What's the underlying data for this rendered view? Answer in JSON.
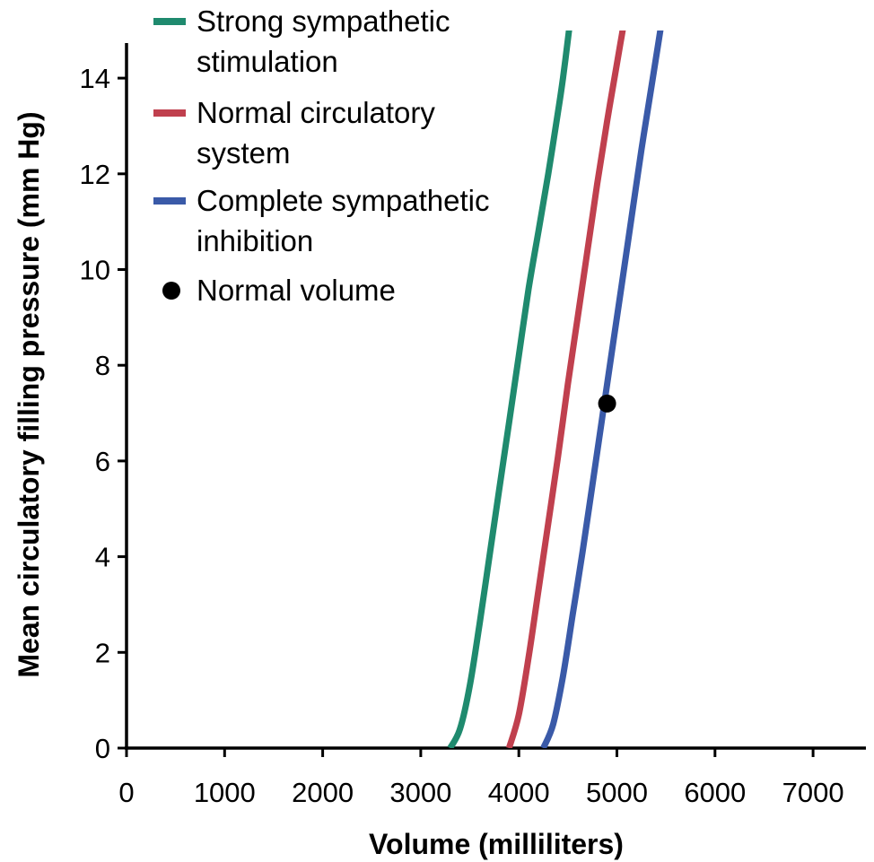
{
  "chart_data": {
    "type": "line",
    "title": "",
    "xlabel": "Volume (milliliters)",
    "ylabel": "Mean circulatory filling pressure (mm Hg)",
    "xlim": [
      0,
      7500
    ],
    "ylim": [
      0,
      15
    ],
    "x_ticks": [
      0,
      1000,
      2000,
      3000,
      4000,
      5000,
      6000,
      7000
    ],
    "y_ticks": [
      0,
      2,
      4,
      6,
      8,
      10,
      12,
      14
    ],
    "grid": false,
    "legend_position": "top-left",
    "series": [
      {
        "name_lines": [
          "Strong sympathetic",
          "stimulation"
        ],
        "color": "#1f8a6e",
        "points": [
          [
            3300,
            0
          ],
          [
            3400,
            0.4
          ],
          [
            3500,
            1.3
          ],
          [
            3600,
            2.6
          ],
          [
            3700,
            4.0
          ],
          [
            3800,
            5.4
          ],
          [
            3900,
            6.8
          ],
          [
            4000,
            8.2
          ],
          [
            4100,
            9.6
          ],
          [
            4200,
            10.8
          ],
          [
            4300,
            12.0
          ],
          [
            4400,
            13.3
          ],
          [
            4450,
            14.0
          ],
          [
            4500,
            14.8
          ],
          [
            4540,
            15.5
          ]
        ]
      },
      {
        "name_lines": [
          "Normal circulatory",
          "system"
        ],
        "color": "#c0404e",
        "points": [
          [
            3900,
            0
          ],
          [
            4000,
            0.7
          ],
          [
            4100,
            1.9
          ],
          [
            4200,
            3.3
          ],
          [
            4300,
            4.7
          ],
          [
            4400,
            6.1
          ],
          [
            4500,
            7.6
          ],
          [
            4600,
            9.0
          ],
          [
            4700,
            10.4
          ],
          [
            4800,
            11.8
          ],
          [
            4900,
            13.1
          ],
          [
            5000,
            14.3
          ],
          [
            5050,
            14.9
          ],
          [
            5100,
            15.5
          ]
        ]
      },
      {
        "name_lines": [
          "Complete sympathetic",
          "inhibition"
        ],
        "color": "#3a5aa8",
        "points": [
          [
            4250,
            0
          ],
          [
            4350,
            0.5
          ],
          [
            4450,
            1.5
          ],
          [
            4550,
            2.8
          ],
          [
            4650,
            4.1
          ],
          [
            4750,
            5.5
          ],
          [
            4850,
            6.9
          ],
          [
            4950,
            8.3
          ],
          [
            5050,
            9.7
          ],
          [
            5150,
            11.1
          ],
          [
            5250,
            12.5
          ],
          [
            5350,
            13.8
          ],
          [
            5420,
            14.7
          ],
          [
            5480,
            15.5
          ]
        ]
      }
    ],
    "annotations": [
      {
        "label": "Normal volume",
        "x": 4900,
        "y": 7.2,
        "color": "#000000"
      }
    ]
  }
}
